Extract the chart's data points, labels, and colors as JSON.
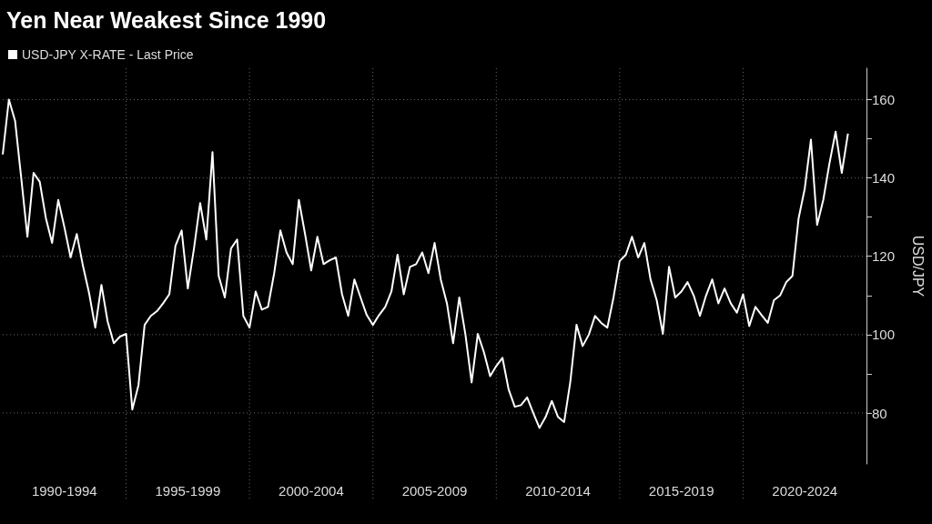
{
  "chart_data": {
    "type": "line",
    "title": "Yen Near Weakest Since 1990",
    "ylabel": "USD/JPY",
    "legend": "top left",
    "grid": true,
    "categories": [
      null,
      null,
      null,
      null,
      null,
      null,
      null,
      null,
      null,
      null,
      "1990-1994",
      null,
      null,
      null,
      null,
      null,
      null,
      null,
      null,
      null,
      null,
      null,
      null,
      null,
      null,
      null,
      null,
      null,
      null,
      null,
      "1995-1999",
      null,
      null,
      null,
      null,
      null,
      null,
      null,
      null,
      null,
      null,
      null,
      null,
      null,
      null,
      null,
      null,
      null,
      null,
      null,
      "2000-2004",
      null,
      null,
      null,
      null,
      null,
      null,
      null,
      null,
      null,
      null,
      null,
      null,
      null,
      null,
      null,
      null,
      null,
      null,
      null,
      "2005-2009",
      null,
      null,
      null,
      null,
      null,
      null,
      null,
      null,
      null,
      null,
      null,
      null,
      null,
      null,
      null,
      null,
      null,
      null,
      null,
      "2010-2014",
      null,
      null,
      null,
      null,
      null,
      null,
      null,
      null,
      null,
      null,
      null,
      null,
      null,
      null,
      null,
      null,
      null,
      null,
      null,
      "2015-2019",
      null,
      null,
      null,
      null,
      null,
      null,
      null,
      null,
      null,
      null,
      null,
      null,
      null,
      null,
      null,
      null,
      null,
      null,
      null,
      "2020-2024",
      null,
      null,
      null,
      null,
      null,
      null,
      null,
      null,
      null,
      null
    ],
    "series": [
      {
        "name": "USD-JPY X-RATE - Last Price",
        "color": "#ffffff",
        "values": [
          146,
          160,
          154.6,
          140,
          125,
          141.3,
          139,
          129.7,
          123.4,
          134.4,
          127.4,
          119.7,
          125.7,
          117.6,
          110.6,
          101.8,
          112.7,
          103.4,
          97.8,
          99.5,
          100.2,
          80.9,
          87.1,
          102.5,
          104.8,
          106,
          108,
          110.3,
          122.7,
          126.6,
          111.8,
          122,
          133.6,
          124.3,
          146.6,
          115,
          109.5,
          122,
          124.3,
          104.8,
          101.8,
          111,
          106.4,
          107.1,
          115.7,
          126.6,
          121,
          118,
          134.4,
          125.7,
          116.4,
          125,
          118,
          119,
          119.7,
          110.3,
          104.8,
          114.1,
          109.5,
          105,
          102.5,
          105,
          107.1,
          111,
          120.4,
          110.3,
          117.3,
          118,
          121,
          115.7,
          123.4,
          114.1,
          108,
          97.8,
          109.5,
          100,
          87.8,
          100.2,
          95.5,
          89.4,
          92,
          94.1,
          86,
          81.6,
          82,
          84,
          80,
          76.2,
          79,
          83.1,
          79,
          77.7,
          88,
          102.5,
          97.1,
          100,
          104.8,
          103,
          101.8,
          109.5,
          118.8,
          120.4,
          125,
          119.7,
          123.4,
          114.1,
          108.8,
          100.2,
          117.3,
          109.5,
          111,
          113.4,
          110,
          104.8,
          110,
          114.1,
          108,
          111.8,
          108,
          105.6,
          110.3,
          102.2,
          107.1,
          105,
          103,
          108.8,
          110,
          113.4,
          115,
          129.7,
          137.3,
          149.8,
          128,
          134.4,
          143.7,
          151.8,
          141.3,
          151.3,
          null,
          null,
          null
        ]
      }
    ],
    "ylim": [
      67,
      168
    ],
    "yticks": [
      80,
      {
        "value": 90,
        "label": null
      },
      100,
      {
        "value": 110,
        "label": null
      },
      120,
      {
        "value": 130,
        "label": null
      },
      140,
      {
        "value": 150,
        "label": null
      },
      160
    ],
    "marker": "none",
    "line_style": "solid"
  }
}
